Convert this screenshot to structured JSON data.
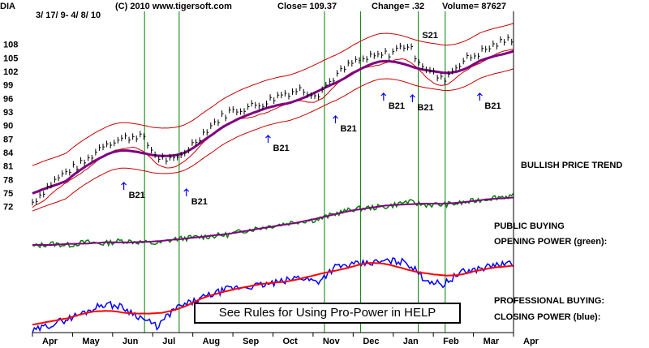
{
  "header": {
    "symbol": "DIA",
    "date_range": "3/ 17/ 9- 4/ 8/ 10",
    "copyright": "(C) 2010 www.tigersoft.com",
    "close": "Close=  109.37",
    "change": "Change= .32",
    "volume": "Volume= 87627"
  },
  "labels": {
    "trend": "BULLISH PRICE TREND",
    "public_buying_1": "PUBLIC BUYING",
    "public_buying_2": "OPENING POWER (green):",
    "professional_buying_1": "PROFESSIONAL BUYING:",
    "professional_buying_2": "CLOSING POWER (blue):",
    "callout": "See Rules for Using Pro-Power in HELP"
  },
  "colors": {
    "price": "#000000",
    "bands": "#cc0000",
    "ma": "#800080",
    "opening_power": "#008000",
    "opening_ma": "#800080",
    "closing_power": "#0000ff",
    "closing_ma": "#ff0000",
    "vline": "#008000"
  },
  "chart_data": [
    {
      "type": "line",
      "title": "DIA",
      "y_ticks": [
        72,
        75,
        78,
        81,
        84,
        87,
        90,
        93,
        96,
        99,
        102,
        105,
        108
      ],
      "ylim": [
        70.5,
        111
      ],
      "x_ticks": [
        "Apr",
        "May",
        "Jun",
        "Jul",
        "Aug",
        "Sep",
        "Oct",
        "Nov",
        "Dec",
        "Jan",
        "Feb",
        "Mar",
        "Apr"
      ],
      "series": [
        {
          "values": [
            73,
            77,
            80,
            82,
            86,
            87,
            88,
            83,
            82,
            86,
            90,
            93,
            94,
            95,
            97,
            98,
            97,
            101,
            104,
            105,
            106,
            108,
            103,
            100,
            104,
            106,
            108,
            109.4
          ]
        }
      ],
      "signals": [
        {
          "label": "B21",
          "month": "Jun"
        },
        {
          "label": "B21",
          "month": "Jul"
        },
        {
          "label": "B21",
          "month": "Sep"
        },
        {
          "label": "B21",
          "month": "Oct"
        },
        {
          "label": "B21",
          "month": "Dec"
        },
        {
          "label": "B21",
          "month": "Jan"
        },
        {
          "label": "S21",
          "month": "Jan"
        },
        {
          "label": "B21",
          "month": "Mar"
        }
      ]
    },
    {
      "type": "line",
      "series": [
        {
          "name": "OPENING POWER (green)",
          "values": [
            2,
            4,
            3,
            5,
            4,
            6,
            5,
            4,
            7,
            8,
            9,
            10,
            13,
            15,
            17,
            19,
            20,
            24,
            27,
            28,
            29,
            32,
            30,
            30,
            31,
            33,
            35,
            36
          ]
        }
      ]
    },
    {
      "type": "line",
      "series": [
        {
          "name": "CLOSING POWER (blue)",
          "values": [
            5,
            12,
            18,
            25,
            33,
            30,
            20,
            10,
            28,
            35,
            42,
            48,
            50,
            52,
            55,
            60,
            55,
            70,
            72,
            74,
            76,
            75,
            58,
            52,
            64,
            68,
            72,
            73
          ]
        }
      ]
    }
  ]
}
